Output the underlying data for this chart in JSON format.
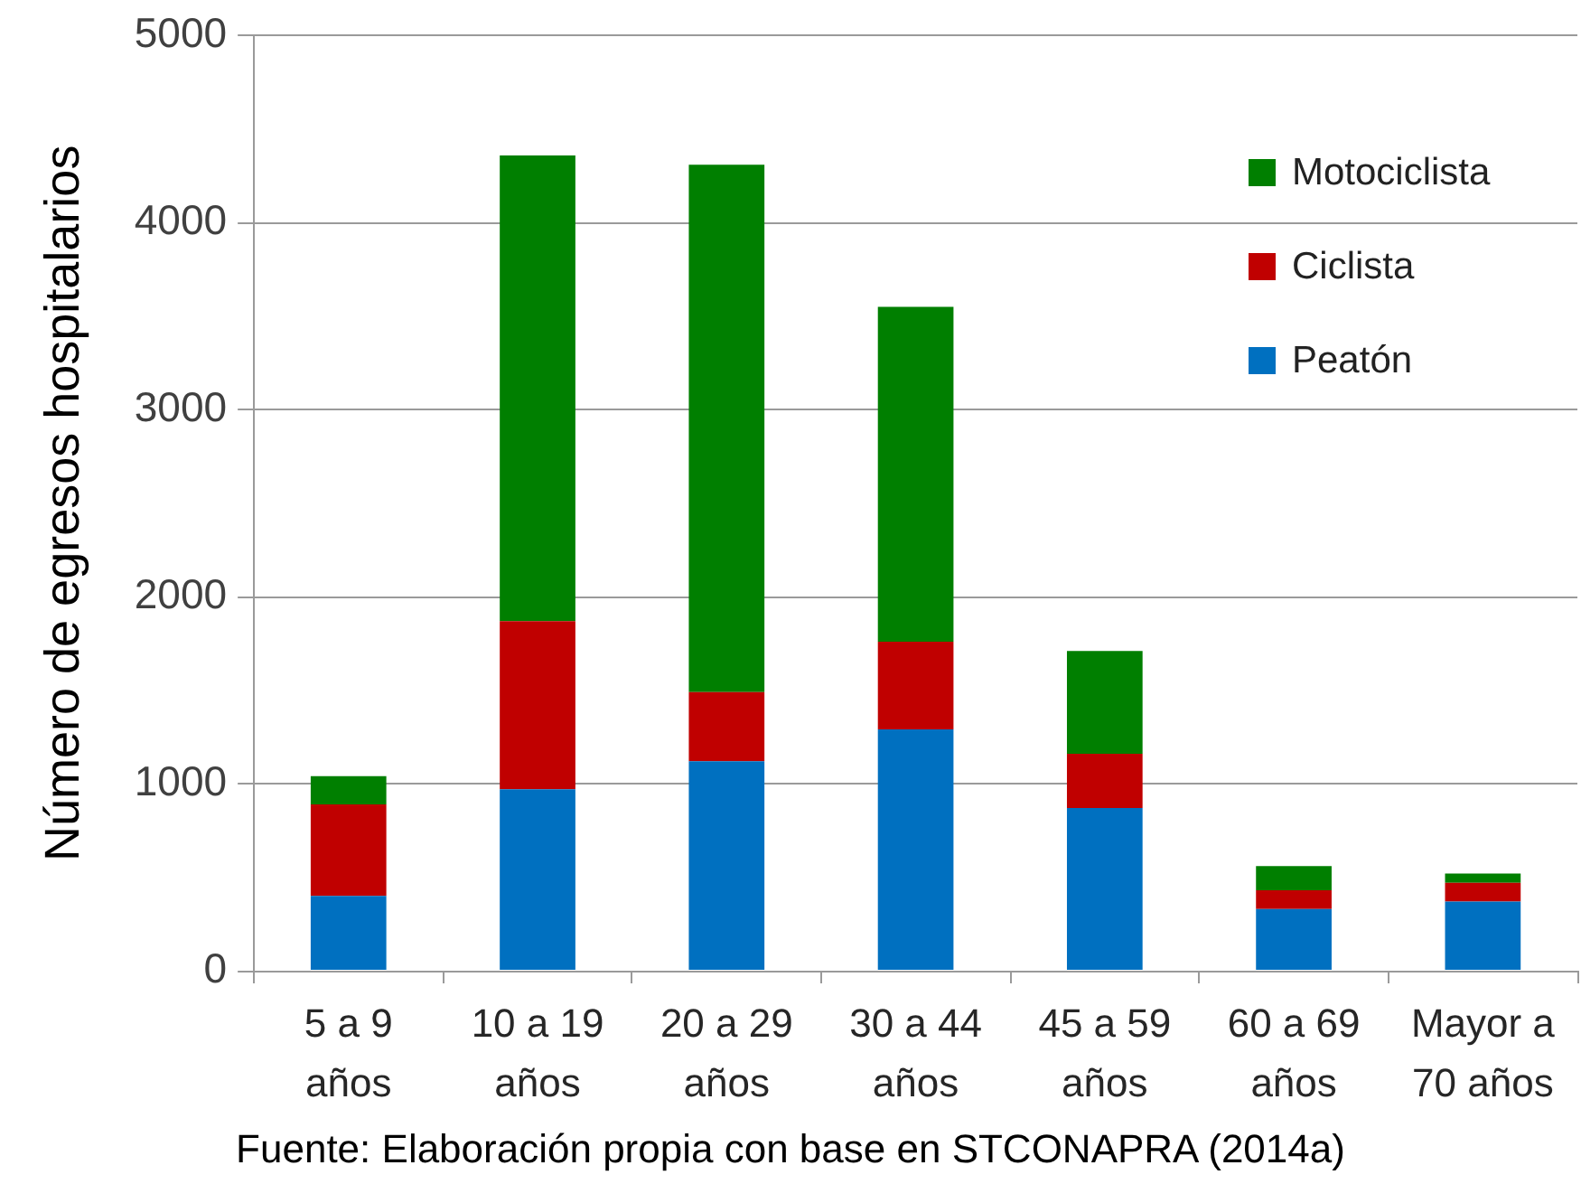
{
  "chart_data": {
    "type": "bar",
    "ylabel": "Número de egresos hospitalarios",
    "annotations": [
      "Fuente: Elaboración propia con base en STCONAPRA (2014a)"
    ],
    "categories": [
      "5 a 9 años",
      "10 a 19 años",
      "20 a 29 años",
      "30 a 44 años",
      "45 a 59 años",
      "60 a 69 años",
      "Mayor a 70 años"
    ],
    "series": [
      {
        "name": "Peatón",
        "color": "#0070c0",
        "values": [
          400,
          970,
          1120,
          1290,
          870,
          330,
          370
        ]
      },
      {
        "name": "Ciclista",
        "color": "#c00000",
        "values": [
          490,
          900,
          370,
          470,
          290,
          100,
          100
        ]
      },
      {
        "name": "Motociclista",
        "color": "#007f00",
        "values": [
          150,
          2490,
          2820,
          1790,
          550,
          130,
          50
        ]
      }
    ],
    "stacked": true,
    "ylim": [
      0,
      5000
    ],
    "yticks": [
      0,
      1000,
      2000,
      3000,
      4000,
      5000
    ],
    "grid": "y",
    "legend": "top right"
  }
}
